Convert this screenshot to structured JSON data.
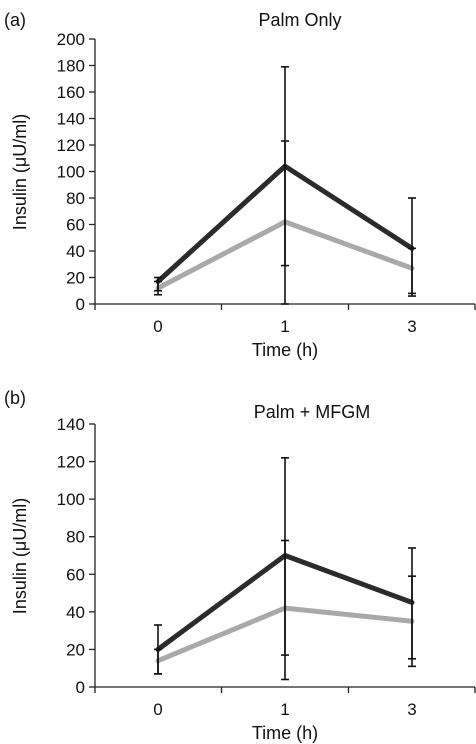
{
  "chart_data": [
    {
      "type": "line",
      "panel_label": "(a)",
      "title": "Palm Only",
      "xlabel": "Time (h)",
      "ylabel": "Insulin (μU/ml)",
      "categories": [
        "0",
        "1",
        "3"
      ],
      "ylim": [
        0,
        200
      ],
      "yticks": [
        0,
        20,
        40,
        60,
        80,
        100,
        120,
        140,
        160,
        180,
        200
      ],
      "grid": false,
      "series": [
        {
          "values": [
            17,
            104,
            42
          ],
          "error_low": [
            10,
            29,
            8
          ],
          "error_high": [
            20,
            179,
            80
          ],
          "color": "#2b2b2b"
        },
        {
          "values": [
            12,
            62,
            27
          ],
          "error_low": [
            7,
            0,
            6
          ],
          "error_high": [
            17,
            123,
            42
          ],
          "color": "#a9a9a9"
        }
      ]
    },
    {
      "type": "line",
      "panel_label": "(b)",
      "title": "Palm + MFGM",
      "xlabel": "Time (h)",
      "ylabel": "Insulin (μU/ml)",
      "categories": [
        "0",
        "1",
        "3"
      ],
      "ylim": [
        0,
        140
      ],
      "yticks": [
        0,
        20,
        40,
        60,
        80,
        100,
        120,
        140
      ],
      "grid": false,
      "series": [
        {
          "values": [
            20,
            70,
            45
          ],
          "error_low": [
            7,
            17,
            15
          ],
          "error_high": [
            33,
            122,
            74
          ],
          "color": "#2b2b2b"
        },
        {
          "values": [
            14,
            42,
            35
          ],
          "error_low": [
            7,
            4,
            11
          ],
          "error_high": [
            20,
            78,
            59
          ],
          "color": "#a9a9a9"
        }
      ]
    }
  ]
}
